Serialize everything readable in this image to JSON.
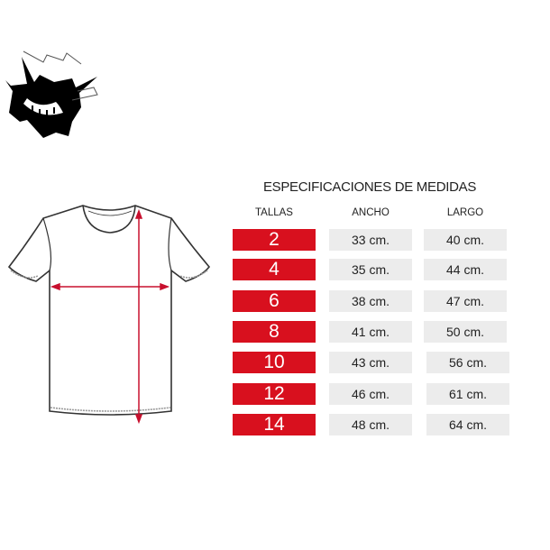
{
  "title": "ESPECIFICACIONES DE MEDIDAS",
  "headers": {
    "size": "TALLAS",
    "width": "ANCHO",
    "length": "LARGO"
  },
  "rows": [
    {
      "size": "2",
      "width": "33 cm.",
      "length": "40 cm."
    },
    {
      "size": "4",
      "width": "35 cm.",
      "length": "44 cm."
    },
    {
      "size": "6",
      "width": "38 cm.",
      "length": "47 cm."
    },
    {
      "size": "8",
      "width": "41 cm.",
      "length": "50 cm."
    },
    {
      "size": "10",
      "width": "43 cm.",
      "length": "56 cm."
    },
    {
      "size": "12",
      "width": "46 cm.",
      "length": "61 cm."
    },
    {
      "size": "14",
      "width": "48 cm.",
      "length": "64 cm."
    }
  ],
  "colors": {
    "accent": "#d8101e",
    "cell_bg": "#ececec",
    "measure_arrow": "#c8102e"
  },
  "icons": {
    "logo": "ghost-face-logo",
    "diagram": "tshirt-measure-diagram"
  }
}
